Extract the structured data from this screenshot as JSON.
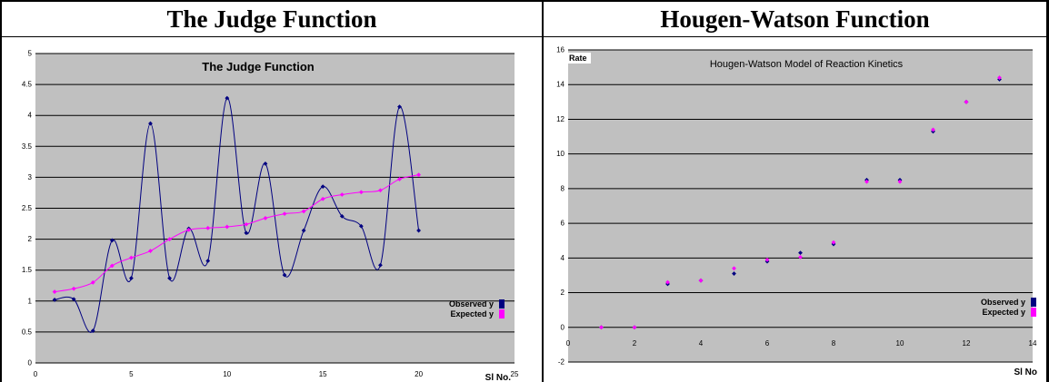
{
  "table": {
    "headers": [
      "The Judge Function",
      "Hougen-Watson Function"
    ]
  },
  "chart_data": [
    {
      "type": "line",
      "title": "The Judge Function",
      "xlabel": "Sl No.",
      "ylabel": "",
      "xlim": [
        0,
        25
      ],
      "ylim": [
        0,
        5
      ],
      "xticks": [
        "0",
        "5",
        "10",
        "15",
        "20",
        "25"
      ],
      "yticks": [
        "0",
        "0.5",
        "1",
        "1.5",
        "2",
        "2.5",
        "3",
        "3.5",
        "4",
        "4.5",
        "5"
      ],
      "grid": "horizontal",
      "legend": "right",
      "x": [
        1,
        2,
        3,
        4,
        5,
        6,
        7,
        8,
        9,
        10,
        11,
        12,
        13,
        14,
        15,
        16,
        17,
        18,
        19,
        20
      ],
      "series": [
        {
          "name": "Observed y",
          "color": "#000080",
          "values": [
            1.02,
            1.03,
            0.52,
            1.98,
            1.37,
            3.87,
            1.37,
            2.17,
            1.65,
            4.28,
            2.1,
            3.22,
            1.42,
            2.14,
            2.85,
            2.37,
            2.21,
            1.58,
            4.14,
            2.14
          ]
        },
        {
          "name": "Expected y",
          "color": "#FF00FF",
          "values": [
            1.15,
            1.2,
            1.3,
            1.57,
            1.7,
            1.81,
            2.0,
            2.15,
            2.18,
            2.2,
            2.24,
            2.34,
            2.41,
            2.45,
            2.65,
            2.72,
            2.76,
            2.79,
            2.97,
            3.04
          ]
        }
      ]
    },
    {
      "type": "scatter",
      "title": "Hougen-Watson Model of Reaction Kinetics",
      "xlabel": "Sl No",
      "ylabel": "Rate",
      "xlim": [
        0,
        14
      ],
      "ylim": [
        -2,
        16
      ],
      "xticks": [
        "0",
        "2",
        "4",
        "6",
        "8",
        "10",
        "12",
        "14"
      ],
      "yticks": [
        "-2",
        "0",
        "2",
        "4",
        "6",
        "8",
        "10",
        "12",
        "14",
        "16"
      ],
      "grid": "horizontal",
      "legend": "bottom-right",
      "x": [
        1,
        2,
        3,
        4,
        5,
        6,
        7,
        8,
        9,
        10,
        11,
        12,
        13
      ],
      "series": [
        {
          "name": "Observed y",
          "color": "#000080",
          "values": [
            0.0,
            0.0,
            2.5,
            2.7,
            3.1,
            3.8,
            4.3,
            4.8,
            8.5,
            8.5,
            11.3,
            13.0,
            14.3
          ]
        },
        {
          "name": "Expected y",
          "color": "#FF00FF",
          "values": [
            0.0,
            0.0,
            2.6,
            2.7,
            3.4,
            3.9,
            4.05,
            4.9,
            8.4,
            8.4,
            11.4,
            13.0,
            14.4
          ]
        }
      ]
    }
  ]
}
